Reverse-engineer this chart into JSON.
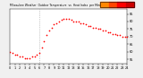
{
  "title": "Milwaukee Weather Outdoor Temperature vs Heat Index per Minute (24 Hours)",
  "background_color": "#f0f0f0",
  "plot_bg_color": "#ffffff",
  "line_color": "#ff0000",
  "markersize": 1.5,
  "vline_x": 360,
  "vline_color": "#999999",
  "vline_style": ":",
  "ylim": [
    52,
    88
  ],
  "xlim": [
    0,
    1440
  ],
  "yticks": [
    55,
    60,
    65,
    70,
    75,
    80,
    85
  ],
  "ytick_labels": [
    "55",
    "60",
    "65",
    "70",
    "75",
    "80",
    "85"
  ],
  "xticks": [
    0,
    60,
    120,
    180,
    240,
    300,
    360,
    420,
    480,
    540,
    600,
    660,
    720,
    780,
    840,
    900,
    960,
    1020,
    1080,
    1140,
    1200,
    1260,
    1320,
    1380,
    1440
  ],
  "xtick_labels": [
    "0",
    "1",
    "2",
    "3",
    "4",
    "5",
    "6",
    "7",
    "8",
    "9",
    "10",
    "11",
    "12",
    "13",
    "14",
    "15",
    "16",
    "17",
    "18",
    "19",
    "20",
    "21",
    "22",
    "23",
    "24"
  ],
  "colorbar_colors": [
    "#ff8800",
    "#ff4400",
    "#ff0000",
    "#cc0000"
  ],
  "x_data": [
    0,
    30,
    60,
    90,
    120,
    150,
    180,
    210,
    240,
    270,
    300,
    330,
    360,
    390,
    420,
    450,
    480,
    510,
    540,
    570,
    600,
    630,
    660,
    690,
    720,
    750,
    780,
    810,
    840,
    870,
    900,
    930,
    960,
    990,
    1020,
    1050,
    1080,
    1110,
    1140,
    1170,
    1200,
    1230,
    1260,
    1290,
    1320,
    1350,
    1380,
    1410,
    1440
  ],
  "y_data": [
    60,
    59,
    58,
    58,
    57,
    57,
    56,
    56,
    56,
    57,
    57,
    58,
    59,
    63,
    67,
    71,
    74,
    76,
    78,
    79,
    80,
    81,
    82,
    82,
    82,
    81,
    80,
    80,
    80,
    79,
    79,
    78,
    77,
    77,
    76,
    76,
    75,
    75,
    74,
    74,
    73,
    73,
    72,
    72,
    71,
    71,
    70,
    70,
    70
  ]
}
